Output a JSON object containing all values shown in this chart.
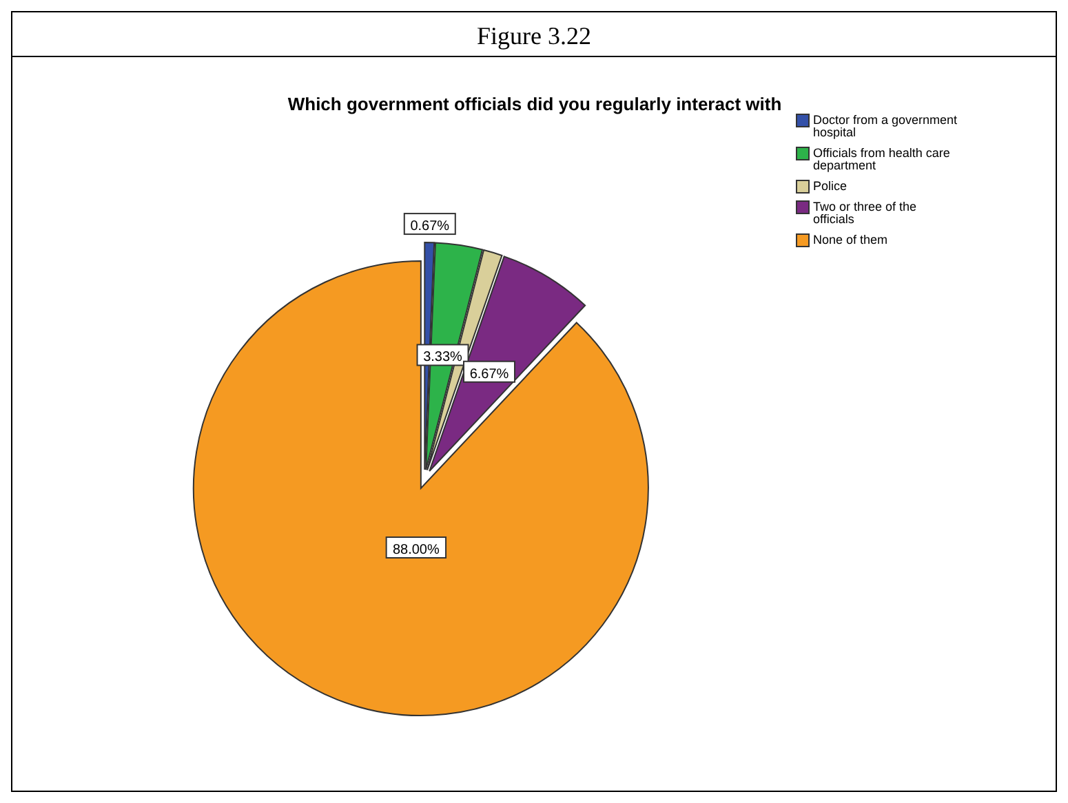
{
  "chart_data": {
    "type": "pie",
    "title": "Which government officials did you regularly interact with",
    "annotations": [
      "Figure 3.22"
    ],
    "categories": [
      "Doctor from a government hospital",
      "Officials from health care department",
      "Police",
      "Two or three of the officials",
      "None of them"
    ],
    "values": [
      0.67,
      3.33,
      1.33,
      6.67,
      88.0
    ],
    "value_labels": [
      "0.67%",
      "3.33%",
      null,
      "6.67%",
      "88.00%"
    ],
    "colors": [
      "#3350a8",
      "#2db34a",
      "#d9cf9a",
      "#7a2a82",
      "#f59a22"
    ],
    "legend": "top right"
  }
}
